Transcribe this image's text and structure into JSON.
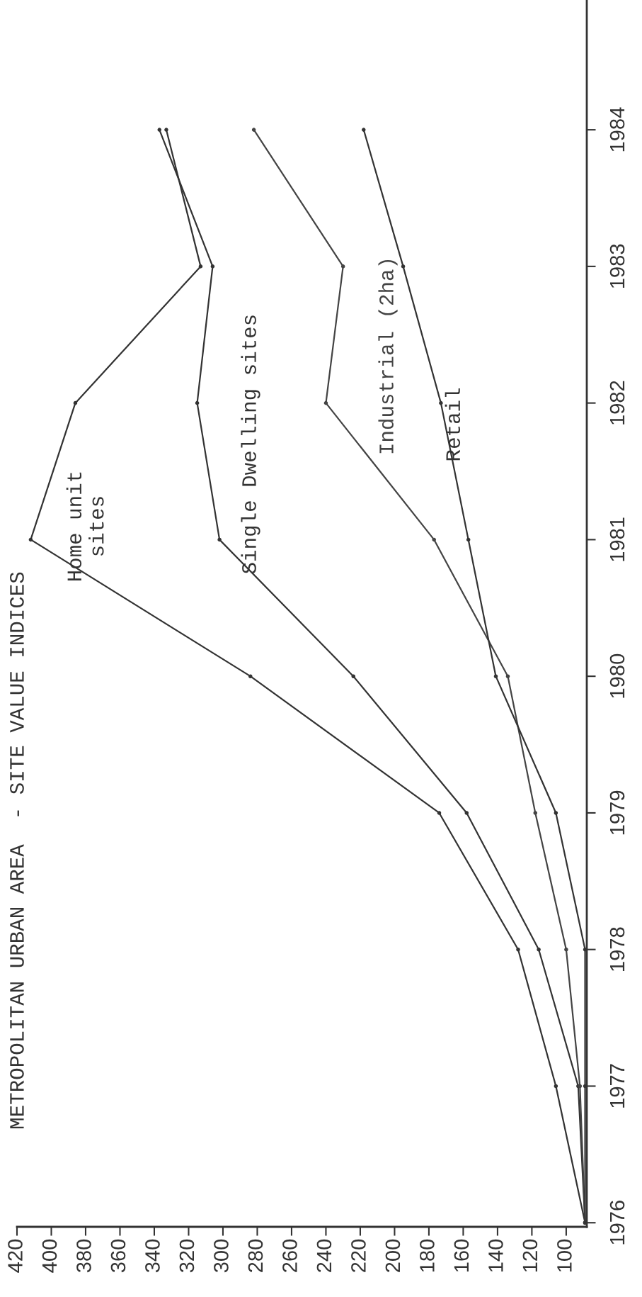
{
  "chart_data": {
    "type": "line",
    "title": "METROPOLITAN URBAN AREA  - SITE VALUE INDICES",
    "xlim": [
      420,
      88
    ],
    "xticks": [
      100,
      120,
      140,
      160,
      180,
      200,
      220,
      240,
      260,
      280,
      300,
      320,
      340,
      360,
      380,
      400,
      420
    ],
    "ylim": [
      1975.97,
      1984.95
    ],
    "yticks": [
      1976,
      1977,
      1978,
      1979,
      1980,
      1981,
      1982,
      1983,
      1984
    ],
    "grid": false,
    "legend": false,
    "marker": "circle",
    "line_style": "solid",
    "series": [
      {
        "name": "Home unit\nsites",
        "color": "#333333",
        "x": [
          89,
          106,
          128,
          174,
          284,
          412,
          386,
          313,
          333
        ],
        "values": [
          1976,
          1977,
          1978,
          1979,
          1980,
          1981,
          1982,
          1983,
          1984
        ]
      },
      {
        "name": "Single Dwelling sites",
        "color": "#333333",
        "x": [
          89,
          93,
          116,
          158,
          224,
          302,
          315,
          306,
          337
        ],
        "values": [
          1976,
          1977,
          1978,
          1979,
          1980,
          1981,
          1982,
          1983,
          1984
        ]
      },
      {
        "name": "Industrial (2ha)",
        "color": "#444444",
        "x": [
          89,
          92,
          100,
          118,
          134,
          177,
          240,
          230,
          282
        ],
        "values": [
          1976,
          1977,
          1978,
          1979,
          1980,
          1981,
          1982,
          1983,
          1984
        ]
      },
      {
        "name": "Retail",
        "color": "#333333",
        "x": [
          89,
          89,
          89,
          106,
          141,
          157,
          173,
          195,
          218
        ],
        "values": [
          1976,
          1977,
          1978,
          1979,
          1980,
          1981,
          1982,
          1983,
          1984
        ]
      }
    ]
  }
}
